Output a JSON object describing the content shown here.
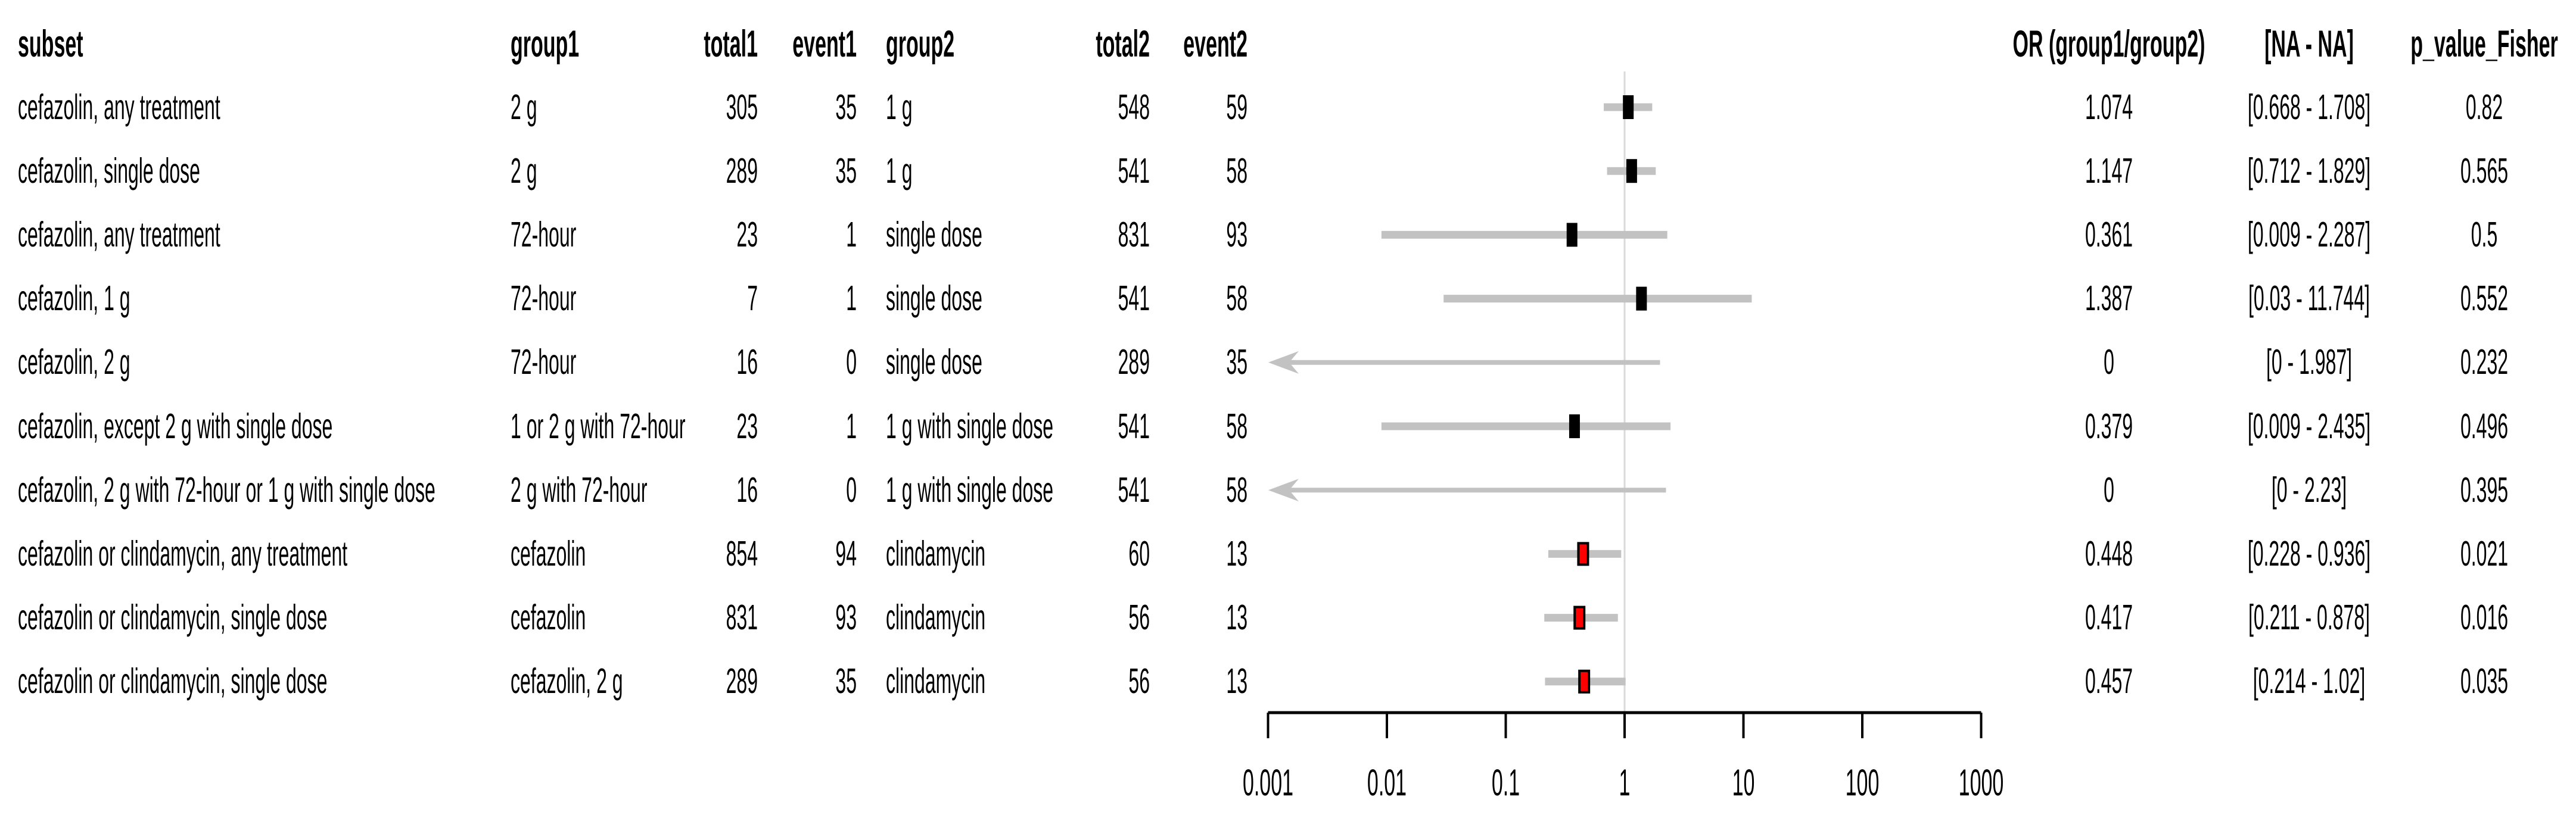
{
  "table": {
    "headers": {
      "subset": "subset",
      "group1": "group1",
      "total1": "total1",
      "event1": "event1",
      "group2": "group2",
      "total2": "total2",
      "event2": "event2",
      "or": "OR (group1/group2)",
      "ci": "[NA - NA]",
      "p": "p_value_Fisher"
    },
    "rows": [
      {
        "subset": "cefazolin, any treatment",
        "group1": "2 g",
        "total1": "305",
        "event1": "35",
        "group2": "1 g",
        "total2": "548",
        "event2": "59",
        "or": "1.074",
        "ci": "[0.668 - 1.708]",
        "p": "0.82"
      },
      {
        "subset": "cefazolin, single dose",
        "group1": "2 g",
        "total1": "289",
        "event1": "35",
        "group2": "1 g",
        "total2": "541",
        "event2": "58",
        "or": "1.147",
        "ci": "[0.712 - 1.829]",
        "p": "0.565"
      },
      {
        "subset": "cefazolin, any treatment",
        "group1": "72-hour",
        "total1": "23",
        "event1": "1",
        "group2": "single dose",
        "total2": "831",
        "event2": "93",
        "or": "0.361",
        "ci": "[0.009 - 2.287]",
        "p": "0.5"
      },
      {
        "subset": "cefazolin, 1 g",
        "group1": "72-hour",
        "total1": "7",
        "event1": "1",
        "group2": "single dose",
        "total2": "541",
        "event2": "58",
        "or": "1.387",
        "ci": "[0.03 - 11.744]",
        "p": "0.552"
      },
      {
        "subset": "cefazolin, 2 g",
        "group1": "72-hour",
        "total1": "16",
        "event1": "0",
        "group2": "single dose",
        "total2": "289",
        "event2": "35",
        "or": "0",
        "ci": "[0 - 1.987]",
        "p": "0.232"
      },
      {
        "subset": "cefazolin, except 2 g with single dose",
        "group1": "1 or 2 g with 72-hour",
        "total1": "23",
        "event1": "1",
        "group2": "1 g with single dose",
        "total2": "541",
        "event2": "58",
        "or": "0.379",
        "ci": "[0.009 - 2.435]",
        "p": "0.496"
      },
      {
        "subset": "cefazolin, 2 g with 72-hour or 1 g with single dose",
        "group1": "2 g with 72-hour",
        "total1": "16",
        "event1": "0",
        "group2": "1 g with single dose",
        "total2": "541",
        "event2": "58",
        "or": "0",
        "ci": "[0 - 2.23]",
        "p": "0.395"
      },
      {
        "subset": "cefazolin or clindamycin, any treatment",
        "group1": "cefazolin",
        "total1": "854",
        "event1": "94",
        "group2": "clindamycin",
        "total2": "60",
        "event2": "13",
        "or": "0.448",
        "ci": "[0.228 - 0.936]",
        "p": "0.021"
      },
      {
        "subset": "cefazolin or clindamycin, single dose",
        "group1": "cefazolin",
        "total1": "831",
        "event1": "93",
        "group2": "clindamycin",
        "total2": "56",
        "event2": "13",
        "or": "0.417",
        "ci": "[0.211 - 0.878]",
        "p": "0.016"
      },
      {
        "subset": "cefazolin or clindamycin, single dose",
        "group1": "cefazolin, 2 g",
        "total1": "289",
        "event1": "35",
        "group2": "clindamycin",
        "total2": "56",
        "event2": "13",
        "or": "0.457",
        "ci": "[0.214 - 1.02]",
        "p": "0.035"
      }
    ]
  },
  "chart_data": {
    "type": "forest",
    "title": "",
    "x_scale": "log10",
    "x_axis_range": [
      0.001,
      1000
    ],
    "x_ticks": [
      0.001,
      0.01,
      0.1,
      1,
      10,
      100,
      1000
    ],
    "x_tick_labels": [
      "0.001",
      "0.01",
      "0.1",
      "1",
      "10",
      "100",
      "1000"
    ],
    "reference_line": 1,
    "legend": "none",
    "grid": false,
    "rows": [
      {
        "label": "cefazolin, any treatment",
        "or": 1.074,
        "ci_low": 0.668,
        "ci_high": 1.708,
        "p": 0.82,
        "marker": "black",
        "arrow_left": false
      },
      {
        "label": "cefazolin, single dose",
        "or": 1.147,
        "ci_low": 0.712,
        "ci_high": 1.829,
        "p": 0.565,
        "marker": "black",
        "arrow_left": false
      },
      {
        "label": "cefazolin, any treatment",
        "or": 0.361,
        "ci_low": 0.009,
        "ci_high": 2.287,
        "p": 0.5,
        "marker": "black",
        "arrow_left": false
      },
      {
        "label": "cefazolin, 1 g",
        "or": 1.387,
        "ci_low": 0.03,
        "ci_high": 11.744,
        "p": 0.552,
        "marker": "black",
        "arrow_left": false
      },
      {
        "label": "cefazolin, 2 g",
        "or": 0,
        "ci_low": 0,
        "ci_high": 1.987,
        "p": 0.232,
        "marker": "none",
        "arrow_left": true
      },
      {
        "label": "cefazolin, except 2 g with single dose",
        "or": 0.379,
        "ci_low": 0.009,
        "ci_high": 2.435,
        "p": 0.496,
        "marker": "black",
        "arrow_left": false
      },
      {
        "label": "cefazolin, 2 g with 72-hour or 1 g with single dose",
        "or": 0,
        "ci_low": 0,
        "ci_high": 2.23,
        "p": 0.395,
        "marker": "none",
        "arrow_left": true
      },
      {
        "label": "cefazolin or clindamycin, any treatment",
        "or": 0.448,
        "ci_low": 0.228,
        "ci_high": 0.936,
        "p": 0.021,
        "marker": "red",
        "arrow_left": false
      },
      {
        "label": "cefazolin or clindamycin, single dose",
        "or": 0.417,
        "ci_low": 0.211,
        "ci_high": 0.878,
        "p": 0.016,
        "marker": "red",
        "arrow_left": false
      },
      {
        "label": "cefazolin or clindamycin, single dose",
        "or": 0.457,
        "ci_low": 0.214,
        "ci_high": 1.02,
        "p": 0.035,
        "marker": "red",
        "arrow_left": false
      }
    ]
  },
  "colors": {
    "background": "#ffffff",
    "text": "#000000",
    "ci_line": "#c2c2c2",
    "arrow": "#c2c2c2",
    "reference_line": "#d9d9d9",
    "axis": "#000000",
    "marker_black": "#000000",
    "marker_red": "#ff0000",
    "marker_red_border": "#000000"
  }
}
